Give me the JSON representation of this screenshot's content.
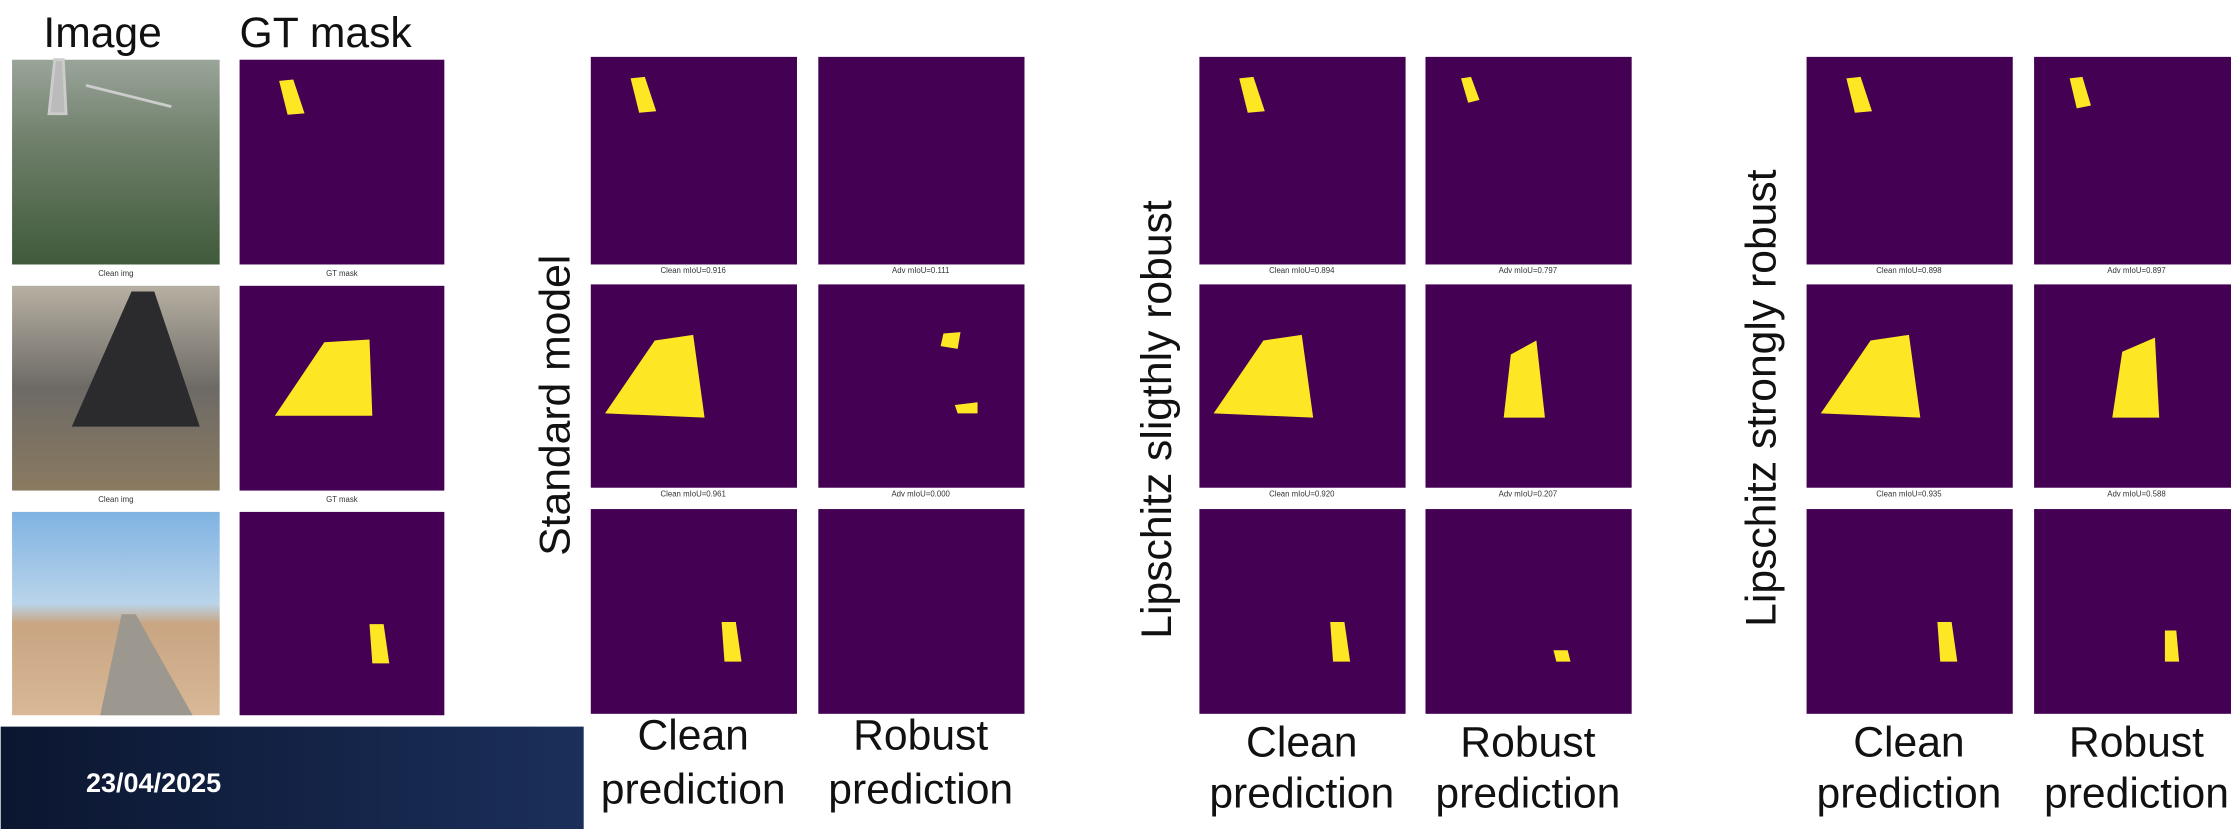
{
  "header": {
    "image": "Image",
    "gt_mask": "GT mask"
  },
  "date": "23/04/2025",
  "input_captions": [
    [
      "Clean img",
      "GT mask"
    ],
    [
      "Clean img",
      "GT mask"
    ]
  ],
  "models": [
    {
      "name": "Standard model",
      "captions": [
        [
          "Clean mIoU=0.916",
          "Adv mIoU=0.111"
        ],
        [
          "Clean mIoU=0.961",
          "Adv mIoU=0.000"
        ]
      ],
      "columns": [
        [
          "Clean",
          "prediction"
        ],
        [
          "Robust",
          "prediction"
        ]
      ]
    },
    {
      "name": "Lipschitz sligthly robust",
      "captions": [
        [
          "Clean mIoU=0.894",
          "Adv mIoU=0.797"
        ],
        [
          "Clean mIoU=0.920",
          "Adv mIoU=0.207"
        ]
      ],
      "columns": [
        [
          "Clean",
          "prediction"
        ],
        [
          "Robust",
          "prediction"
        ]
      ]
    },
    {
      "name": "Lipschitz strongly robust",
      "captions": [
        [
          "Clean mIoU=0.898",
          "Adv mIoU=0.897"
        ],
        [
          "Clean mIoU=0.935",
          "Adv mIoU=0.588"
        ]
      ],
      "columns": [
        [
          "Clean",
          "prediction"
        ],
        [
          "Robust",
          "prediction"
        ]
      ]
    }
  ]
}
